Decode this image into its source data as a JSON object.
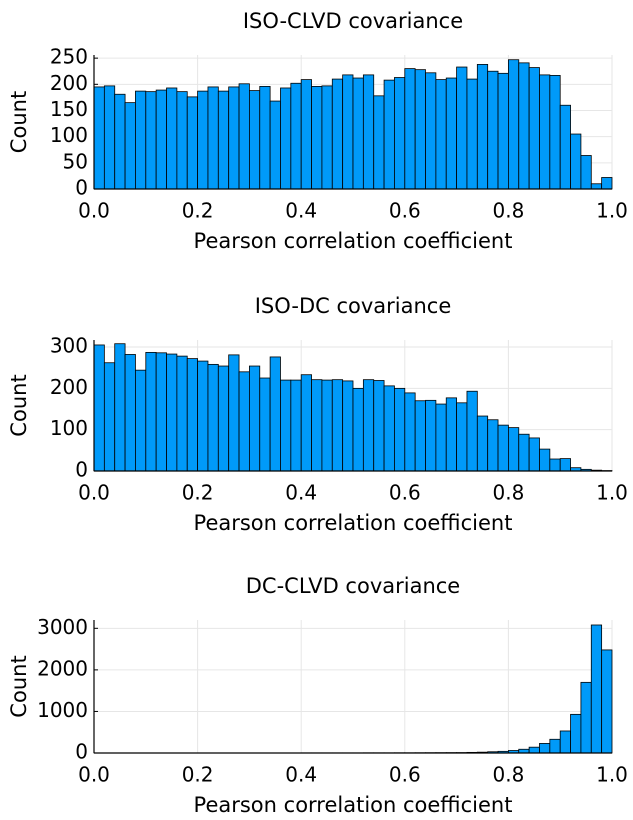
{
  "chart_data": [
    {
      "type": "histogram",
      "title": "ISO-CLVD covariance",
      "xlabel": "Pearson correlation coefficient",
      "ylabel": "Count",
      "color": "#009af9",
      "grid": true,
      "bins": [
        0,
        0.02,
        0.04,
        0.06,
        0.08,
        0.1,
        0.12,
        0.14,
        0.16,
        0.18,
        0.2,
        0.22,
        0.24,
        0.26,
        0.28,
        0.3,
        0.32,
        0.34,
        0.36,
        0.38,
        0.4,
        0.42,
        0.44,
        0.46,
        0.48,
        0.5,
        0.52,
        0.54,
        0.56,
        0.58,
        0.6,
        0.62,
        0.64,
        0.66,
        0.68,
        0.7,
        0.72,
        0.74,
        0.76,
        0.78,
        0.8,
        0.82,
        0.84,
        0.86,
        0.88,
        0.9,
        0.92,
        0.94,
        0.96,
        0.98,
        1
      ],
      "values": [
        195,
        197,
        181,
        165,
        187,
        186,
        189,
        193,
        186,
        176,
        187,
        195,
        187,
        195,
        201,
        188,
        196,
        168,
        193,
        202,
        209,
        196,
        197,
        210,
        218,
        212,
        218,
        178,
        208,
        213,
        230,
        228,
        222,
        209,
        212,
        233,
        210,
        238,
        225,
        221,
        247,
        241,
        232,
        218,
        217,
        160,
        105,
        64,
        10,
        22
      ],
      "xlim": [
        0,
        1
      ],
      "xticks": [
        {
          "value": 0,
          "label": "0.0"
        },
        0.2,
        0.4,
        0.6,
        0.8,
        {
          "value": 1,
          "label": "1.0"
        }
      ],
      "ylim": [
        0,
        256
      ],
      "yticks": [
        0,
        50,
        100,
        150,
        200,
        250
      ]
    },
    {
      "type": "histogram",
      "title": "ISO-DC covariance",
      "xlabel": "Pearson correlation coefficient",
      "ylabel": "Count",
      "color": "#009af9",
      "grid": true,
      "bins": [
        0,
        0.02,
        0.04,
        0.06,
        0.08,
        0.1,
        0.12,
        0.14,
        0.16,
        0.18,
        0.2,
        0.22,
        0.24,
        0.26,
        0.28,
        0.3,
        0.32,
        0.34,
        0.36,
        0.38,
        0.4,
        0.42,
        0.44,
        0.46,
        0.48,
        0.5,
        0.52,
        0.54,
        0.56,
        0.58,
        0.6,
        0.62,
        0.64,
        0.66,
        0.68,
        0.7,
        0.72,
        0.74,
        0.76,
        0.78,
        0.8,
        0.82,
        0.84,
        0.86,
        0.88,
        0.9,
        0.92,
        0.94,
        0.96,
        0.98,
        1
      ],
      "values": [
        305,
        262,
        308,
        282,
        244,
        287,
        286,
        283,
        278,
        272,
        266,
        258,
        254,
        281,
        240,
        254,
        225,
        276,
        220,
        220,
        233,
        221,
        220,
        221,
        218,
        200,
        221,
        219,
        206,
        200,
        189,
        170,
        171,
        162,
        177,
        165,
        193,
        133,
        124,
        111,
        105,
        89,
        80,
        53,
        29,
        30,
        8,
        4,
        2,
        1
      ],
      "xlim": [
        0,
        1
      ],
      "xticks": [
        {
          "value": 0,
          "label": "0.0"
        },
        0.2,
        0.4,
        0.6,
        0.8,
        {
          "value": 1,
          "label": "1.0"
        }
      ],
      "ylim": [
        0,
        317
      ],
      "yticks": [
        0,
        100,
        200,
        300
      ]
    },
    {
      "type": "histogram",
      "title": "DC-CLVD covariance",
      "xlabel": "Pearson correlation coefficient",
      "ylabel": "Count",
      "color": "#009af9",
      "grid": true,
      "bins": [
        0,
        0.02,
        0.04,
        0.06,
        0.08,
        0.1,
        0.12,
        0.14,
        0.16,
        0.18,
        0.2,
        0.22,
        0.24,
        0.26,
        0.28,
        0.3,
        0.32,
        0.34,
        0.36,
        0.38,
        0.4,
        0.42,
        0.44,
        0.46,
        0.48,
        0.5,
        0.52,
        0.54,
        0.56,
        0.58,
        0.6,
        0.62,
        0.64,
        0.66,
        0.68,
        0.7,
        0.72,
        0.74,
        0.76,
        0.78,
        0.8,
        0.82,
        0.84,
        0.86,
        0.88,
        0.9,
        0.92,
        0.94,
        0.96,
        0.98,
        1
      ],
      "values": [
        2,
        2,
        2,
        2,
        2,
        2,
        2,
        2,
        2,
        2,
        2,
        2,
        2,
        2,
        2,
        2,
        2,
        2,
        2,
        2,
        3,
        3,
        3,
        3,
        3,
        3,
        4,
        4,
        4,
        5,
        5,
        6,
        7,
        8,
        9,
        10,
        15,
        20,
        30,
        40,
        60,
        90,
        140,
        230,
        330,
        530,
        930,
        1700,
        3080,
        2480
      ],
      "xlim": [
        0,
        1
      ],
      "xticks": [
        {
          "value": 0,
          "label": "0.0"
        },
        0.2,
        0.4,
        0.6,
        0.8,
        {
          "value": 1,
          "label": "1.0"
        }
      ],
      "ylim": [
        0,
        3200
      ],
      "yticks": [
        0,
        1000,
        2000,
        3000
      ]
    }
  ]
}
